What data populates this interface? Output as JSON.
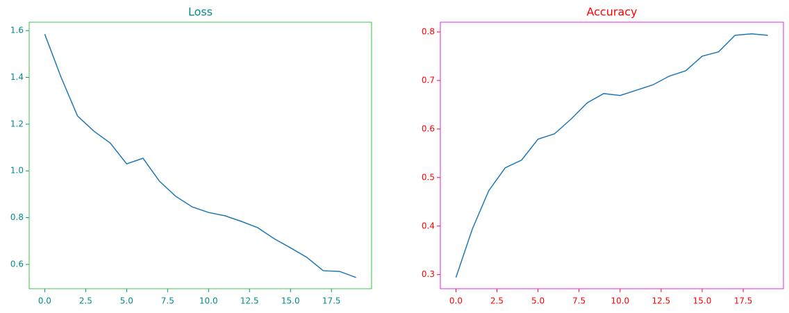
{
  "chart_data": [
    {
      "type": "line",
      "title": "Loss",
      "title_color": "#008b8b",
      "tick_color": "#008b8b",
      "frame_color": "#40c040",
      "x": [
        0,
        1,
        2,
        3,
        4,
        5,
        6,
        7,
        8,
        9,
        10,
        11,
        12,
        13,
        14,
        15,
        16,
        17,
        18,
        19
      ],
      "series": [
        {
          "color": "#1f77b4",
          "values": [
            1.585,
            1.4,
            1.235,
            1.17,
            1.119,
            1.03,
            1.054,
            0.956,
            0.891,
            0.846,
            0.822,
            0.808,
            0.784,
            0.757,
            0.71,
            0.671,
            0.63,
            0.573,
            0.57,
            0.544
          ]
        }
      ],
      "xlim": [
        -0.95,
        19.95
      ],
      "xticks": [
        {
          "value": 0,
          "label": "0.0"
        },
        2.5,
        {
          "value": 5,
          "label": "5.0"
        },
        7.5,
        {
          "value": 10,
          "label": "10.0"
        },
        12.5,
        {
          "value": 15,
          "label": "15.0"
        },
        17.5
      ],
      "ylim": [
        0.496,
        1.636
      ],
      "yticks": [
        0.6,
        0.8,
        {
          "value": 1,
          "label": "1.0"
        },
        1.2,
        1.4,
        1.6
      ]
    },
    {
      "type": "line",
      "title": "Accuracy",
      "title_color": "#ff0000",
      "tick_color": "#ff0000",
      "frame_color": "#e020e0",
      "x": [
        0,
        1,
        2,
        3,
        4,
        5,
        6,
        7,
        8,
        9,
        10,
        11,
        12,
        13,
        14,
        15,
        16,
        17,
        18,
        19
      ],
      "series": [
        {
          "color": "#1f77b4",
          "values": [
            0.294,
            0.394,
            0.473,
            0.52,
            0.536,
            0.579,
            0.59,
            0.62,
            0.654,
            0.673,
            0.669,
            0.68,
            0.691,
            0.709,
            0.72,
            0.75,
            0.759,
            0.793,
            0.796,
            0.793
          ]
        }
      ],
      "xlim": [
        -0.95,
        19.95
      ],
      "xticks": [
        {
          "value": 0,
          "label": "0.0"
        },
        2.5,
        {
          "value": 5,
          "label": "5.0"
        },
        7.5,
        {
          "value": 10,
          "label": "10.0"
        },
        12.5,
        {
          "value": 15,
          "label": "15.0"
        },
        17.5
      ],
      "ylim": [
        0.271,
        0.82
      ],
      "yticks": [
        0.3,
        0.4,
        0.5,
        0.6,
        0.7,
        0.8
      ]
    }
  ]
}
